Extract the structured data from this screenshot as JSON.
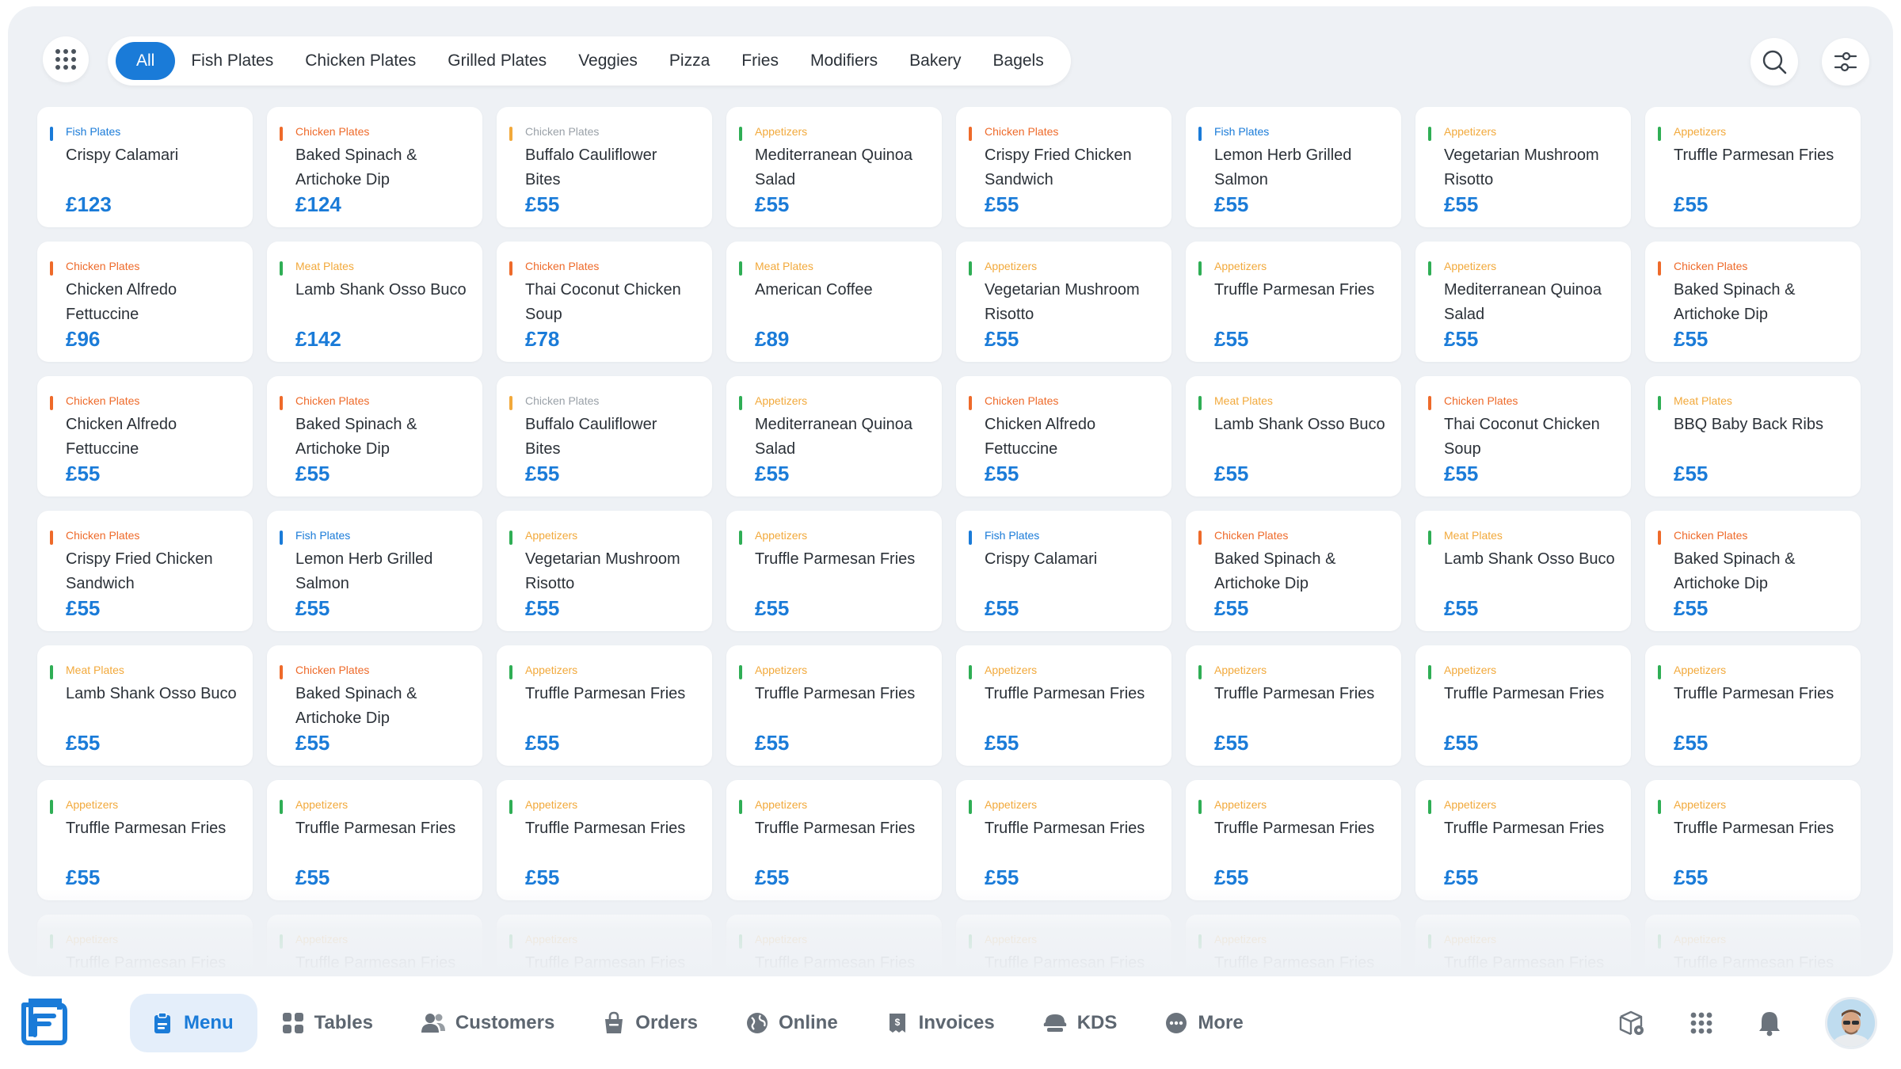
{
  "categories": [
    "All",
    "Fish Plates",
    "Chicken Plates",
    "Grilled Plates",
    "Veggies",
    "Pizza",
    "Fries",
    "Modifiers",
    "Bakery",
    "Bagels"
  ],
  "colors": {
    "accent": "#1a7bd8",
    "Fish Plates": "#1a7bd8",
    "Chicken Plates": "#ee6a2a",
    "Chicken Plates (alt)": "#f2a93b",
    "Appetizers": "#f2a93b",
    "Meat Plates": "#f2a93b",
    "appetizer_bar": "#2fae55"
  },
  "items": [
    {
      "cat": "Fish Plates",
      "name": "Crispy Calamari",
      "price": "£123"
    },
    {
      "cat": "Chicken Plates",
      "name": "Baked Spinach & Artichoke Dip",
      "price": "£124"
    },
    {
      "cat": "Chicken Plates",
      "name": "Buffalo Cauliflower Bites",
      "price": "£55",
      "muted": true
    },
    {
      "cat": "Appetizers",
      "name": "Mediterranean Quinoa Salad",
      "price": "£55"
    },
    {
      "cat": "Chicken Plates",
      "name": "Crispy Fried Chicken Sandwich",
      "price": "£55"
    },
    {
      "cat": "Fish Plates",
      "name": "Lemon Herb Grilled Salmon",
      "price": "£55"
    },
    {
      "cat": "Appetizers",
      "name": "Vegetarian Mushroom Risotto",
      "price": "£55"
    },
    {
      "cat": "Appetizers",
      "name": "Truffle Parmesan Fries",
      "price": "£55"
    },
    {
      "cat": "Chicken Plates",
      "name": "Chicken Alfredo Fettuccine",
      "price": "£96"
    },
    {
      "cat": "Meat Plates",
      "name": "Lamb Shank Osso Buco",
      "price": "£142"
    },
    {
      "cat": "Chicken Plates",
      "name": "Thai Coconut Chicken Soup",
      "price": "£78"
    },
    {
      "cat": "Meat Plates",
      "name": "American Coffee",
      "price": "£89"
    },
    {
      "cat": "Appetizers",
      "name": "Vegetarian Mushroom Risotto",
      "price": "£55"
    },
    {
      "cat": "Appetizers",
      "name": "Truffle Parmesan Fries",
      "price": "£55"
    },
    {
      "cat": "Appetizers",
      "name": "Mediterranean Quinoa Salad",
      "price": "£55"
    },
    {
      "cat": "Chicken Plates",
      "name": "Baked Spinach & Artichoke Dip",
      "price": "£55"
    },
    {
      "cat": "Chicken Plates",
      "name": "Chicken Alfredo Fettuccine",
      "price": "£55"
    },
    {
      "cat": "Chicken Plates",
      "name": "Baked Spinach & Artichoke Dip",
      "price": "£55"
    },
    {
      "cat": "Chicken Plates",
      "name": "Buffalo Cauliflower Bites",
      "price": "£55",
      "muted": true
    },
    {
      "cat": "Appetizers",
      "name": "Mediterranean Quinoa Salad",
      "price": "£55"
    },
    {
      "cat": "Chicken Plates",
      "name": "Chicken Alfredo Fettuccine",
      "price": "£55"
    },
    {
      "cat": "Meat Plates",
      "name": "Lamb Shank Osso Buco",
      "price": "£55"
    },
    {
      "cat": "Chicken Plates",
      "name": "Thai Coconut Chicken Soup",
      "price": "£55"
    },
    {
      "cat": "Meat Plates",
      "name": "BBQ Baby Back Ribs",
      "price": "£55"
    },
    {
      "cat": "Chicken Plates",
      "name": "Crispy Fried Chicken Sandwich",
      "price": "£55"
    },
    {
      "cat": "Fish Plates",
      "name": "Lemon Herb Grilled Salmon",
      "price": "£55"
    },
    {
      "cat": "Appetizers",
      "name": "Vegetarian Mushroom Risotto",
      "price": "£55"
    },
    {
      "cat": "Appetizers",
      "name": "Truffle Parmesan Fries",
      "price": "£55"
    },
    {
      "cat": "Fish Plates",
      "name": "Crispy Calamari",
      "price": "£55"
    },
    {
      "cat": "Chicken Plates",
      "name": "Baked Spinach & Artichoke Dip",
      "price": "£55"
    },
    {
      "cat": "Meat Plates",
      "name": "Lamb Shank Osso Buco",
      "price": "£55"
    },
    {
      "cat": "Chicken Plates",
      "name": "Baked Spinach & Artichoke Dip",
      "price": "£55"
    },
    {
      "cat": "Meat Plates",
      "name": "Lamb Shank Osso Buco",
      "price": "£55"
    },
    {
      "cat": "Chicken Plates",
      "name": "Baked Spinach & Artichoke Dip",
      "price": "£55"
    },
    {
      "cat": "Appetizers",
      "name": "Truffle Parmesan Fries",
      "price": "£55"
    },
    {
      "cat": "Appetizers",
      "name": "Truffle Parmesan Fries",
      "price": "£55"
    },
    {
      "cat": "Appetizers",
      "name": "Truffle Parmesan Fries",
      "price": "£55"
    },
    {
      "cat": "Appetizers",
      "name": "Truffle Parmesan Fries",
      "price": "£55"
    },
    {
      "cat": "Appetizers",
      "name": "Truffle Parmesan Fries",
      "price": "£55"
    },
    {
      "cat": "Appetizers",
      "name": "Truffle Parmesan Fries",
      "price": "£55"
    },
    {
      "cat": "Appetizers",
      "name": "Truffle Parmesan Fries",
      "price": "£55"
    },
    {
      "cat": "Appetizers",
      "name": "Truffle Parmesan Fries",
      "price": "£55"
    },
    {
      "cat": "Appetizers",
      "name": "Truffle Parmesan Fries",
      "price": "£55"
    },
    {
      "cat": "Appetizers",
      "name": "Truffle Parmesan Fries",
      "price": "£55"
    },
    {
      "cat": "Appetizers",
      "name": "Truffle Parmesan Fries",
      "price": "£55"
    },
    {
      "cat": "Appetizers",
      "name": "Truffle Parmesan Fries",
      "price": "£55"
    },
    {
      "cat": "Appetizers",
      "name": "Truffle Parmesan Fries",
      "price": "£55"
    },
    {
      "cat": "Appetizers",
      "name": "Truffle Parmesan Fries",
      "price": "£55"
    },
    {
      "cat": "Appetizers",
      "name": "Truffle Parmesan Fries",
      "price": ""
    },
    {
      "cat": "Appetizers",
      "name": "Truffle Parmesan Fries",
      "price": ""
    },
    {
      "cat": "Appetizers",
      "name": "Truffle Parmesan Fries",
      "price": ""
    },
    {
      "cat": "Appetizers",
      "name": "Truffle Parmesan Fries",
      "price": ""
    },
    {
      "cat": "Appetizers",
      "name": "Truffle Parmesan Fries",
      "price": ""
    },
    {
      "cat": "Appetizers",
      "name": "Truffle Parmesan Fries",
      "price": ""
    },
    {
      "cat": "Appetizers",
      "name": "Truffle Parmesan Fries",
      "price": ""
    },
    {
      "cat": "Appetizers",
      "name": "Truffle Parmesan Fries",
      "price": ""
    }
  ],
  "nav": {
    "items": [
      {
        "label": "Menu",
        "icon": "menu-clipboard-icon",
        "active": true
      },
      {
        "label": "Tables",
        "icon": "tables-grid-icon"
      },
      {
        "label": "Customers",
        "icon": "customers-icon"
      },
      {
        "label": "Orders",
        "icon": "orders-bag-icon"
      },
      {
        "label": "Online",
        "icon": "online-globe-icon"
      },
      {
        "label": "Invoices",
        "icon": "invoices-icon"
      },
      {
        "label": "KDS",
        "icon": "kds-icon"
      },
      {
        "label": "More",
        "icon": "more-dots-icon"
      }
    ]
  },
  "icons": {
    "apps": "apps-grid-icon",
    "search": "search-icon",
    "filter": "filter-sliders-icon",
    "logo": "app-logo-icon",
    "box": "box-settings-icon",
    "apps_bottom": "apps-grid-icon",
    "bell": "bell-icon",
    "avatar": "user-avatar"
  }
}
